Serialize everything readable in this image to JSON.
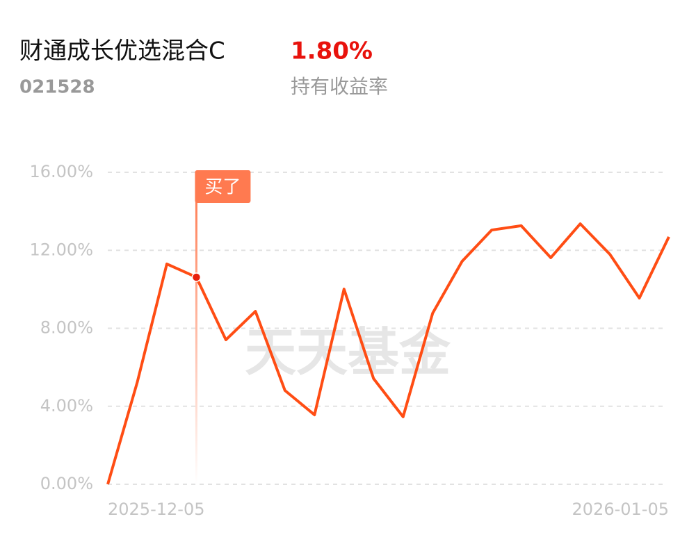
{
  "chart_data": {
    "type": "line",
    "title": "财通成长优选混合C",
    "return_value": "1.80%",
    "fund_code": "021528",
    "return_label": "持有收益率",
    "watermark": "天天基金",
    "categories": [
      "2025-12-05",
      null,
      null,
      null,
      null,
      null,
      null,
      null,
      null,
      null,
      null,
      null,
      null,
      null,
      null,
      null,
      null,
      null,
      null,
      "2026-01-05"
    ],
    "series": [
      {
        "color": "#ff4d14",
        "values": [
          0,
          5.24,
          11.3,
          10.62,
          7.41,
          8.87,
          4.81,
          3.56,
          10.01,
          5.42,
          3.46,
          8.77,
          11.44,
          13.04,
          13.26,
          11.62,
          13.36,
          11.8,
          9.55,
          12.69
        ]
      }
    ],
    "annotations": [
      {
        "label": "买了",
        "point": 3
      }
    ],
    "ylim": [
      0,
      16
    ],
    "yticks": [
      {
        "value": 0,
        "label": "0.00%"
      },
      {
        "value": 4,
        "label": "4.00%"
      },
      {
        "value": 8,
        "label": "8.00%"
      },
      {
        "value": 12,
        "label": "12.00%"
      },
      {
        "value": 16,
        "label": "16.00%"
      }
    ],
    "grid": true
  }
}
